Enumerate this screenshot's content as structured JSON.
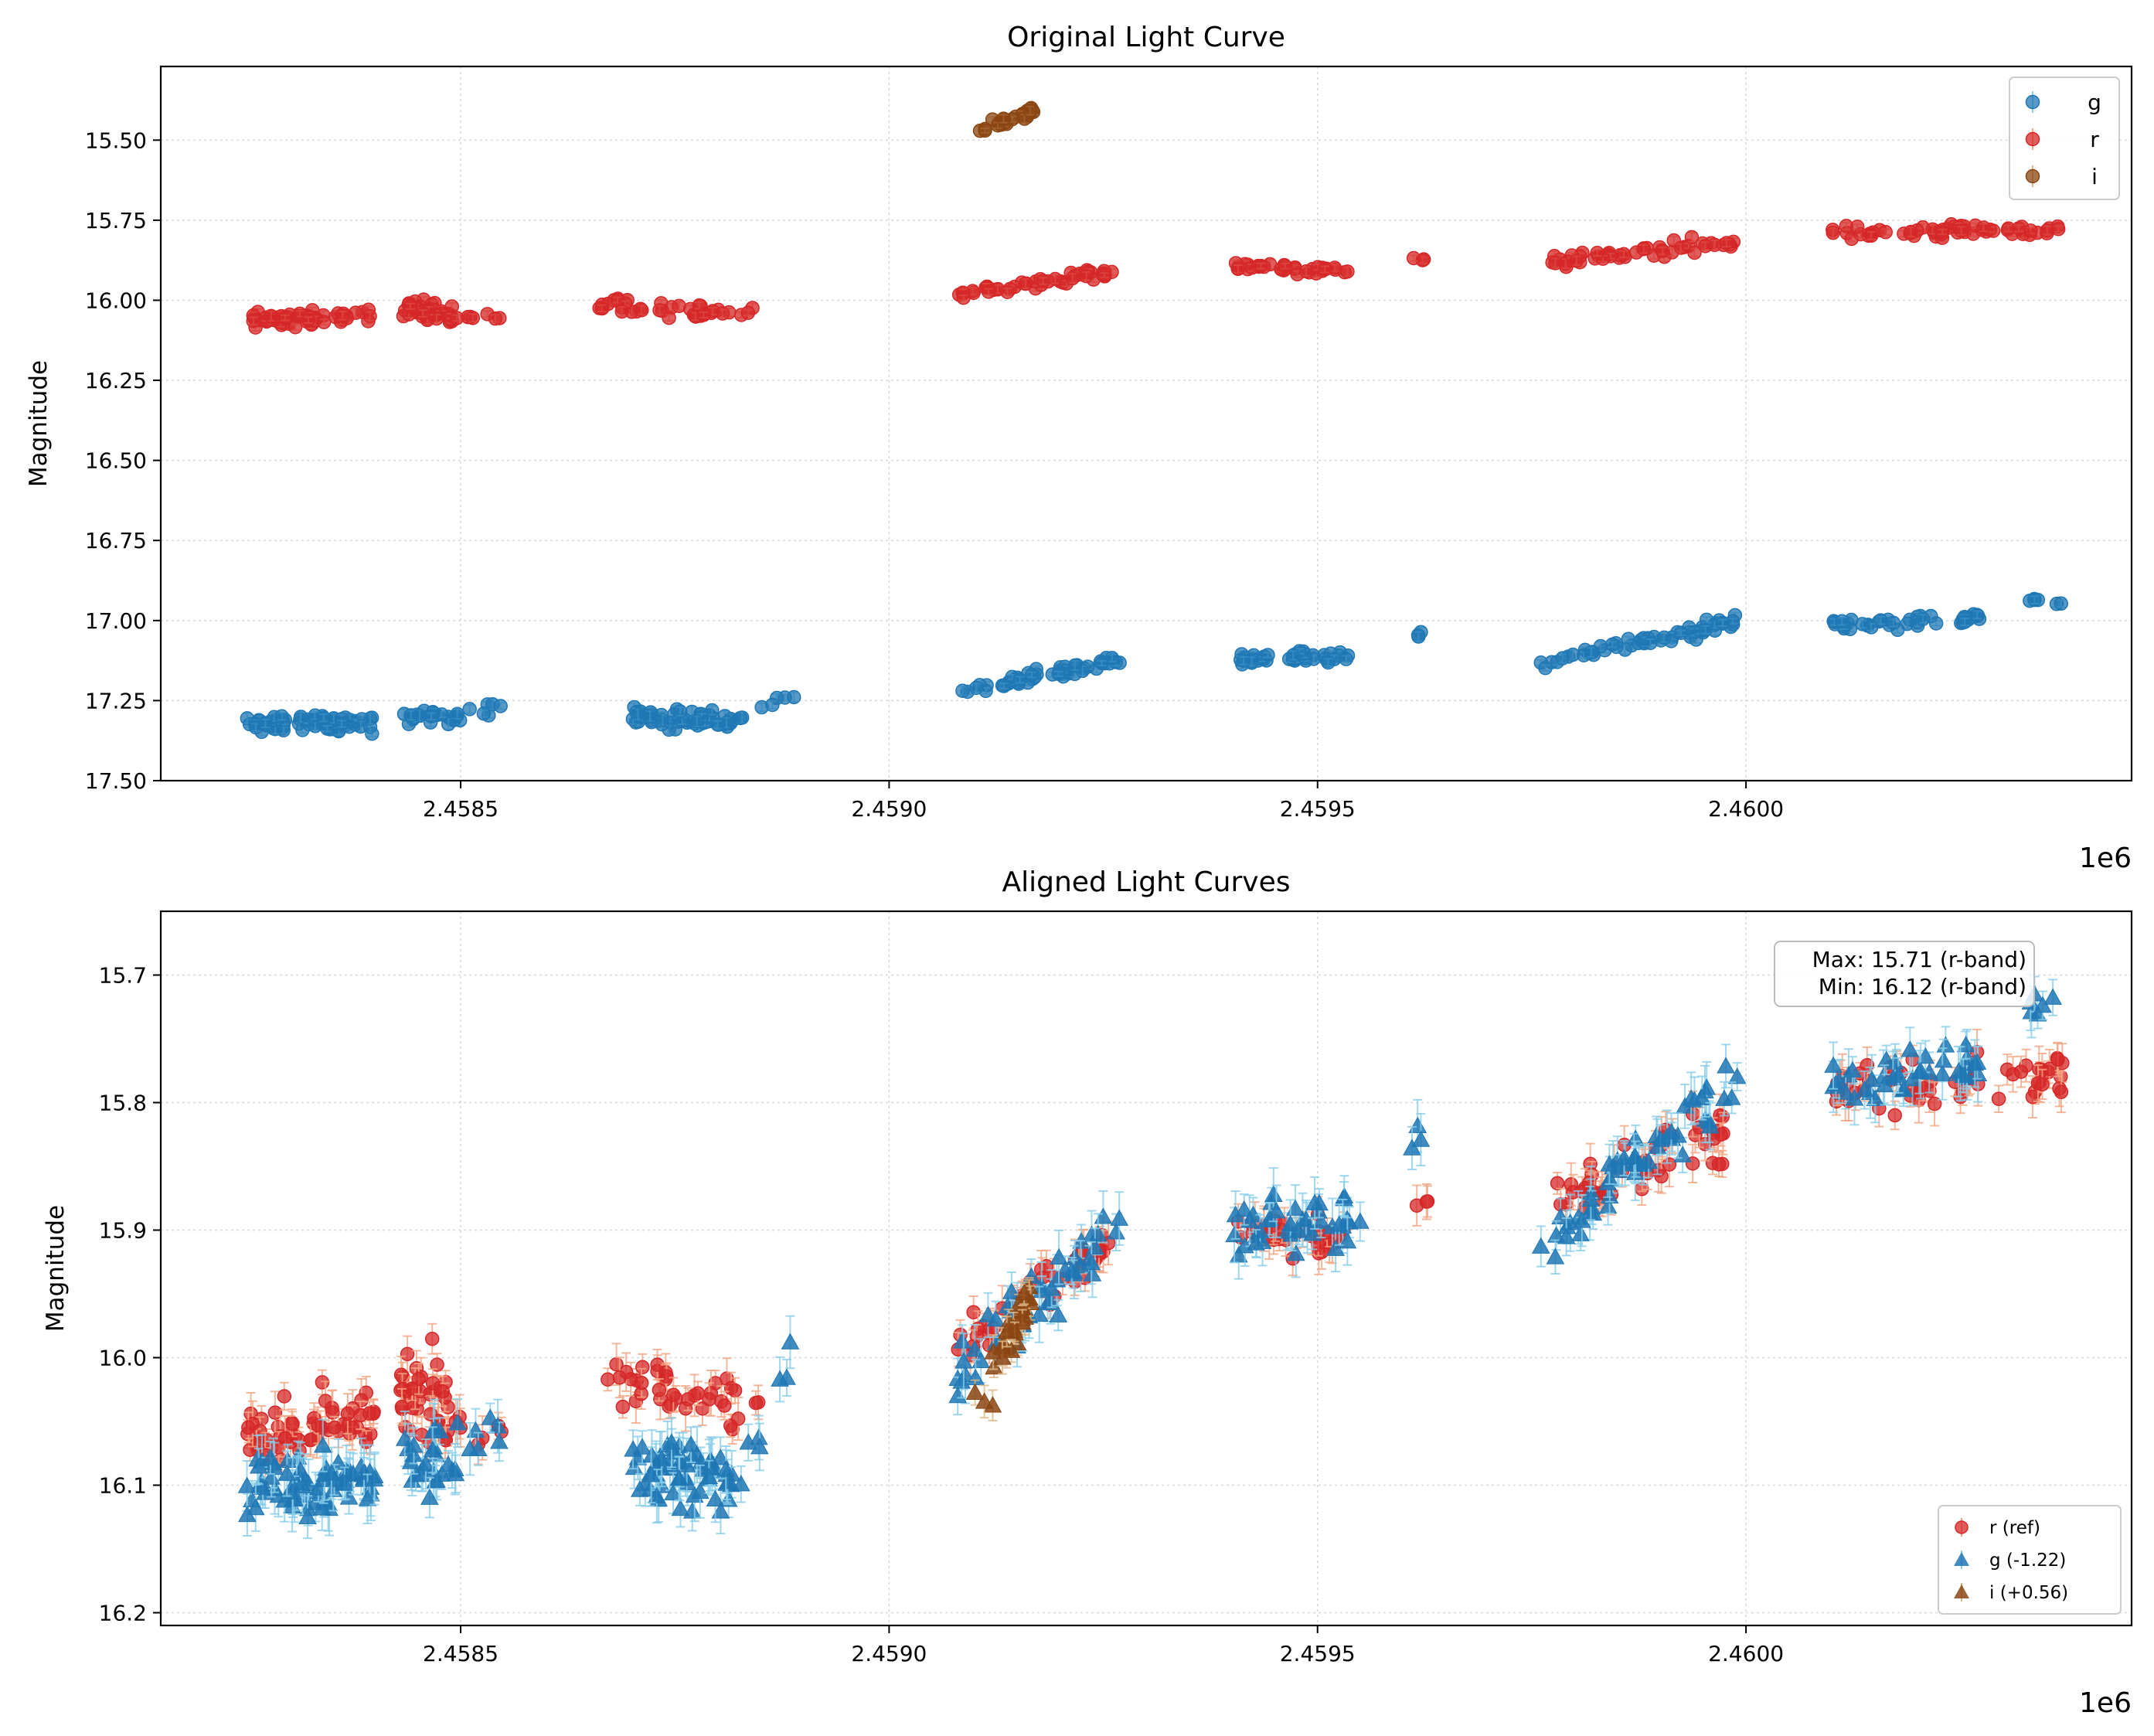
{
  "chart_data": [
    {
      "type": "scatter",
      "title": "Original Light Curve",
      "xlabel": "",
      "ylabel": "Magnitude",
      "x_offset_label": "1e6",
      "xlim": [
        2.45815,
        2.46045
      ],
      "ylim": [
        17.5,
        15.27
      ],
      "y_inverted": true,
      "grid": true,
      "legend_position": "top-right",
      "xticks": [
        2.4585,
        2.459,
        2.4595,
        2.46
      ],
      "xtick_labels": [
        "2.4585",
        "2.4590",
        "2.4595",
        "2.4600"
      ],
      "yticks": [
        15.5,
        15.75,
        16.0,
        16.25,
        16.5,
        16.75,
        17.0,
        17.25,
        17.5
      ],
      "ytick_labels": [
        "15.50",
        "15.75",
        "16.00",
        "16.25",
        "16.50",
        "16.75",
        "17.00",
        "17.25",
        "17.50"
      ],
      "series": [
        {
          "name": "g",
          "color": "#1f77b4",
          "ecolor": "#87ceeb",
          "marker": "circle",
          "segments": [
            {
              "x0": 2.45825,
              "x1": 2.4584,
              "mag0": 17.32,
              "mag1": 17.32,
              "spread": 0.045,
              "n": 70,
              "err": 0.012
            },
            {
              "x0": 2.45843,
              "x1": 2.4585,
              "mag0": 17.3,
              "mag1": 17.3,
              "spread": 0.04,
              "n": 26,
              "err": 0.012
            },
            {
              "x0": 2.45851,
              "x1": 2.45855,
              "mag0": 17.28,
              "mag1": 17.28,
              "spread": 0.03,
              "n": 6,
              "err": 0.012
            },
            {
              "x0": 2.4587,
              "x1": 2.45882,
              "mag0": 17.3,
              "mag1": 17.32,
              "spread": 0.045,
              "n": 60,
              "err": 0.012
            },
            {
              "x0": 2.45882,
              "x1": 2.45889,
              "mag0": 17.32,
              "mag1": 17.22,
              "spread": 0.03,
              "n": 7,
              "err": 0.012
            },
            {
              "x0": 2.45908,
              "x1": 2.45927,
              "mag0": 17.23,
              "mag1": 17.12,
              "spread": 0.035,
              "n": 50,
              "err": 0.01
            },
            {
              "x0": 2.4594,
              "x1": 2.45955,
              "mag0": 17.12,
              "mag1": 17.11,
              "spread": 0.035,
              "n": 40,
              "err": 0.01
            },
            {
              "x0": 2.45961,
              "x1": 2.45963,
              "mag0": 17.05,
              "mag1": 17.05,
              "spread": 0.02,
              "n": 3,
              "err": 0.01
            },
            {
              "x0": 2.45976,
              "x1": 2.45999,
              "mag0": 17.13,
              "mag1": 17.0,
              "spread": 0.035,
              "n": 55,
              "err": 0.01
            },
            {
              "x0": 2.4601,
              "x1": 2.46028,
              "mag0": 17.01,
              "mag1": 16.99,
              "spread": 0.03,
              "n": 40,
              "err": 0.01
            },
            {
              "x0": 2.46033,
              "x1": 2.46037,
              "mag0": 16.94,
              "mag1": 16.94,
              "spread": 0.02,
              "n": 6,
              "err": 0.01
            }
          ]
        },
        {
          "name": "r",
          "color": "#d62728",
          "ecolor": "#f4a582",
          "marker": "circle",
          "segments": [
            {
              "x0": 2.45825,
              "x1": 2.4584,
              "mag0": 16.06,
              "mag1": 16.05,
              "spread": 0.035,
              "n": 60,
              "err": 0.01
            },
            {
              "x0": 2.45843,
              "x1": 2.45849,
              "mag0": 16.03,
              "mag1": 16.04,
              "spread": 0.05,
              "n": 40,
              "err": 0.01
            },
            {
              "x0": 2.45849,
              "x1": 2.45855,
              "mag0": 16.05,
              "mag1": 16.06,
              "spread": 0.02,
              "n": 7,
              "err": 0.01
            },
            {
              "x0": 2.45866,
              "x1": 2.45885,
              "mag0": 16.02,
              "mag1": 16.04,
              "spread": 0.035,
              "n": 40,
              "err": 0.01
            },
            {
              "x0": 2.45908,
              "x1": 2.45926,
              "mag0": 15.99,
              "mag1": 15.91,
              "spread": 0.03,
              "n": 45,
              "err": 0.01
            },
            {
              "x0": 2.4594,
              "x1": 2.45954,
              "mag0": 15.89,
              "mag1": 15.91,
              "spread": 0.025,
              "n": 35,
              "err": 0.01
            },
            {
              "x0": 2.45961,
              "x1": 2.45963,
              "mag0": 15.87,
              "mag1": 15.87,
              "spread": 0.02,
              "n": 3,
              "err": 0.01
            },
            {
              "x0": 2.45977,
              "x1": 2.45999,
              "mag0": 15.88,
              "mag1": 15.82,
              "spread": 0.035,
              "n": 50,
              "err": 0.01
            },
            {
              "x0": 2.4601,
              "x1": 2.46037,
              "mag0": 15.79,
              "mag1": 15.78,
              "spread": 0.03,
              "n": 60,
              "err": 0.01
            }
          ]
        },
        {
          "name": "i",
          "color": "#8b4513",
          "ecolor": "#deb887",
          "marker": "circle",
          "segments": [
            {
              "x0": 2.4591,
              "x1": 2.45912,
              "mag0": 15.47,
              "mag1": 15.47,
              "spread": 0.02,
              "n": 3,
              "err": 0.01
            },
            {
              "x0": 2.45912,
              "x1": 2.45917,
              "mag0": 15.45,
              "mag1": 15.41,
              "spread": 0.025,
              "n": 30,
              "err": 0.01
            }
          ]
        }
      ]
    },
    {
      "type": "scatter",
      "title": "Aligned Light Curves",
      "xlabel": "",
      "ylabel": "Magnitude",
      "x_offset_label": "1e6",
      "xlim": [
        2.45815,
        2.46045
      ],
      "ylim": [
        16.21,
        15.65
      ],
      "y_inverted": true,
      "grid": true,
      "legend_position": "bottom-right",
      "xticks": [
        2.4585,
        2.459,
        2.4595,
        2.46
      ],
      "xtick_labels": [
        "2.4585",
        "2.4590",
        "2.4595",
        "2.4600"
      ],
      "yticks": [
        15.7,
        15.8,
        15.9,
        16.0,
        16.1,
        16.2
      ],
      "ytick_labels": [
        "15.7",
        "15.8",
        "15.9",
        "16.0",
        "16.1",
        "16.2"
      ],
      "annotation": {
        "lines": [
          "Max: 15.71 (r-band)",
          "Min: 16.12 (r-band)"
        ],
        "position": "top-right"
      },
      "series": [
        {
          "name": "r (ref)",
          "color": "#d62728",
          "ecolor": "#f4a582",
          "marker": "circle",
          "segments": [
            {
              "x0": 2.45825,
              "x1": 2.4584,
              "mag0": 16.06,
              "mag1": 16.05,
              "spread": 0.035,
              "n": 60,
              "err": 0.012
            },
            {
              "x0": 2.45843,
              "x1": 2.45849,
              "mag0": 16.03,
              "mag1": 16.04,
              "spread": 0.05,
              "n": 40,
              "err": 0.012
            },
            {
              "x0": 2.45849,
              "x1": 2.45855,
              "mag0": 16.05,
              "mag1": 16.06,
              "spread": 0.02,
              "n": 7,
              "err": 0.012
            },
            {
              "x0": 2.45866,
              "x1": 2.45885,
              "mag0": 16.02,
              "mag1": 16.04,
              "spread": 0.035,
              "n": 40,
              "err": 0.012
            },
            {
              "x0": 2.45908,
              "x1": 2.45926,
              "mag0": 15.99,
              "mag1": 15.91,
              "spread": 0.03,
              "n": 45,
              "err": 0.012
            },
            {
              "x0": 2.4594,
              "x1": 2.45954,
              "mag0": 15.89,
              "mag1": 15.91,
              "spread": 0.025,
              "n": 35,
              "err": 0.012
            },
            {
              "x0": 2.45961,
              "x1": 2.45963,
              "mag0": 15.87,
              "mag1": 15.87,
              "spread": 0.02,
              "n": 3,
              "err": 0.012
            },
            {
              "x0": 2.45977,
              "x1": 2.45999,
              "mag0": 15.88,
              "mag1": 15.82,
              "spread": 0.035,
              "n": 50,
              "err": 0.012
            },
            {
              "x0": 2.4601,
              "x1": 2.46037,
              "mag0": 15.79,
              "mag1": 15.78,
              "spread": 0.03,
              "n": 60,
              "err": 0.012
            }
          ]
        },
        {
          "name": "g (-1.22)",
          "color": "#1f77b4",
          "ecolor": "#87ceeb",
          "marker": "triangle",
          "segments": [
            {
              "x0": 2.45825,
              "x1": 2.4584,
              "mag0": 16.1,
              "mag1": 16.1,
              "spread": 0.045,
              "n": 70,
              "err": 0.015
            },
            {
              "x0": 2.45843,
              "x1": 2.4585,
              "mag0": 16.08,
              "mag1": 16.08,
              "spread": 0.04,
              "n": 26,
              "err": 0.015
            },
            {
              "x0": 2.45851,
              "x1": 2.45855,
              "mag0": 16.06,
              "mag1": 16.06,
              "spread": 0.03,
              "n": 6,
              "err": 0.015
            },
            {
              "x0": 2.4587,
              "x1": 2.45882,
              "mag0": 16.08,
              "mag1": 16.1,
              "spread": 0.045,
              "n": 60,
              "err": 0.015
            },
            {
              "x0": 2.45882,
              "x1": 2.45889,
              "mag0": 16.1,
              "mag1": 16.0,
              "spread": 0.03,
              "n": 7,
              "err": 0.015
            },
            {
              "x0": 2.45908,
              "x1": 2.45927,
              "mag0": 16.01,
              "mag1": 15.9,
              "spread": 0.035,
              "n": 50,
              "err": 0.015
            },
            {
              "x0": 2.4594,
              "x1": 2.45955,
              "mag0": 15.9,
              "mag1": 15.89,
              "spread": 0.035,
              "n": 40,
              "err": 0.015
            },
            {
              "x0": 2.45961,
              "x1": 2.45963,
              "mag0": 15.83,
              "mag1": 15.83,
              "spread": 0.02,
              "n": 3,
              "err": 0.015
            },
            {
              "x0": 2.45976,
              "x1": 2.45999,
              "mag0": 15.91,
              "mag1": 15.78,
              "spread": 0.035,
              "n": 55,
              "err": 0.015
            },
            {
              "x0": 2.4601,
              "x1": 2.46028,
              "mag0": 15.79,
              "mag1": 15.77,
              "spread": 0.03,
              "n": 40,
              "err": 0.015
            },
            {
              "x0": 2.46033,
              "x1": 2.46037,
              "mag0": 15.72,
              "mag1": 15.72,
              "spread": 0.02,
              "n": 6,
              "err": 0.015
            }
          ]
        },
        {
          "name": "i (+0.56)",
          "color": "#8b4513",
          "ecolor": "#deb887",
          "marker": "triangle",
          "segments": [
            {
              "x0": 2.4591,
              "x1": 2.45913,
              "mag0": 16.03,
              "mag1": 16.05,
              "spread": 0.015,
              "n": 3,
              "err": 0.01
            },
            {
              "x0": 2.45912,
              "x1": 2.45917,
              "mag0": 16.0,
              "mag1": 15.95,
              "spread": 0.025,
              "n": 30,
              "err": 0.01
            }
          ]
        }
      ]
    }
  ]
}
